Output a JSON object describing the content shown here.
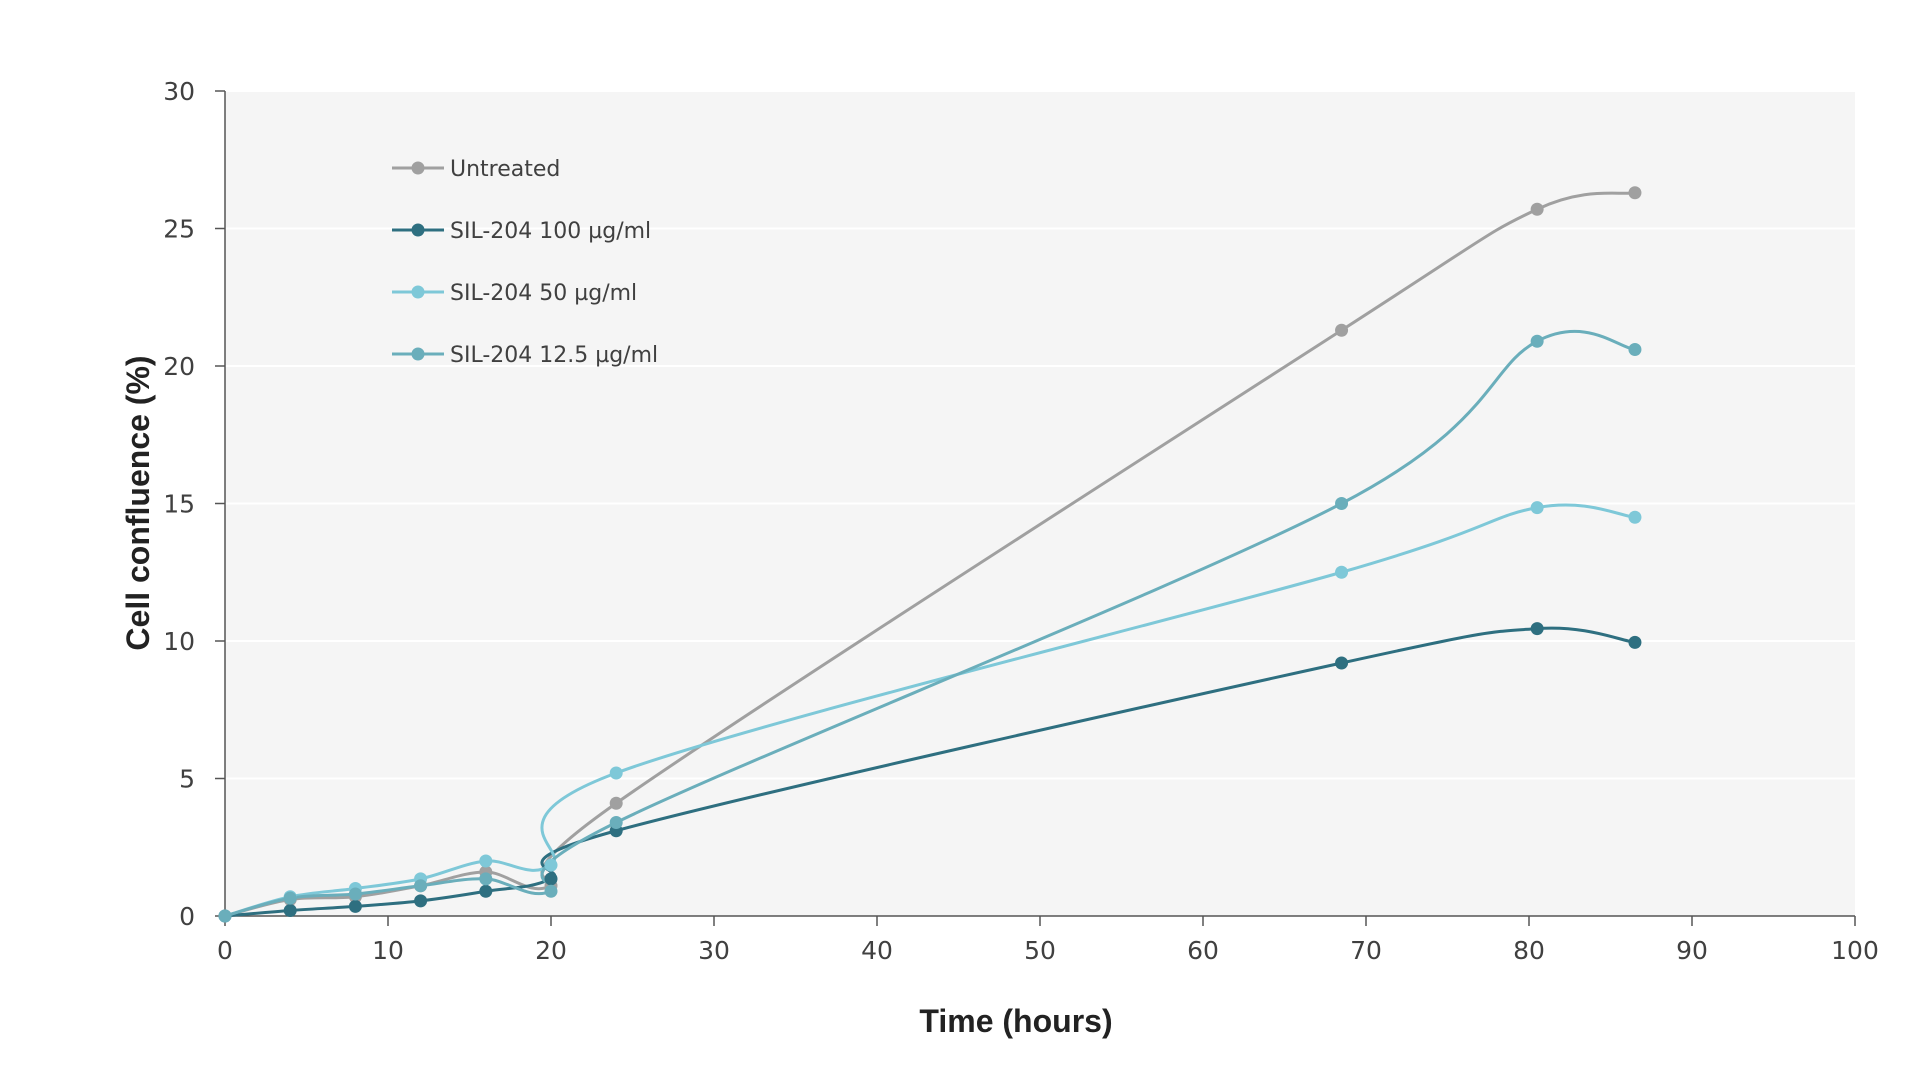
{
  "chart_data": {
    "type": "line",
    "title": "",
    "xlabel": "Time (hours)",
    "ylabel": "Cell confluence (%)",
    "xlim": [
      0,
      100
    ],
    "ylim": [
      0,
      30
    ],
    "x_ticks": [
      0,
      10,
      20,
      30,
      40,
      50,
      60,
      70,
      80,
      90,
      100
    ],
    "y_ticks": [
      0,
      5,
      10,
      15,
      20,
      25,
      30
    ],
    "grid": "horizontal",
    "legend_position": "top-left",
    "smooth": true,
    "series": [
      {
        "name": "Untreated",
        "color": "#a0a0a0",
        "x": [
          0,
          4,
          8,
          12,
          16,
          20,
          24,
          68.5,
          80.5,
          86.5
        ],
        "y": [
          0,
          0.6,
          0.7,
          1.1,
          1.6,
          1.1,
          4.1,
          21.3,
          25.7,
          26.3
        ]
      },
      {
        "name": "SIL-204 100 µg/ml",
        "color": "#2e6f80",
        "x": [
          0,
          4,
          8,
          12,
          16,
          20,
          24,
          68.5,
          80.5,
          86.5
        ],
        "y": [
          0,
          0.2,
          0.35,
          0.55,
          0.9,
          1.35,
          3.1,
          9.2,
          10.45,
          9.95
        ]
      },
      {
        "name": "SIL-204 50 µg/ml",
        "color": "#7ec8d8",
        "x": [
          0,
          4,
          8,
          12,
          16,
          20,
          24,
          68.5,
          80.5,
          86.5
        ],
        "y": [
          0,
          0.7,
          1.0,
          1.35,
          2.0,
          1.85,
          5.2,
          12.5,
          14.85,
          14.5
        ]
      },
      {
        "name": "SIL-204 12.5 µg/ml",
        "color": "#6aaebb",
        "x": [
          0,
          4,
          8,
          12,
          16,
          20,
          24,
          68.5,
          80.5,
          86.5
        ],
        "y": [
          0,
          0.65,
          0.8,
          1.1,
          1.35,
          0.9,
          3.4,
          15.0,
          20.9,
          20.6
        ]
      }
    ]
  }
}
